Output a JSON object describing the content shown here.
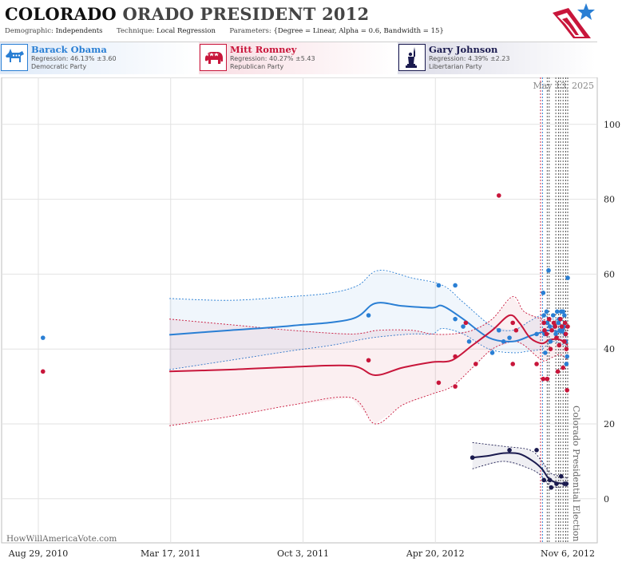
{
  "header": {
    "title_part1": "COLORADO",
    "title_part2": "ORADO PRESIDENT 2012",
    "demographic_label": "Demographic:",
    "demographic_value": "Independents",
    "technique_label": "Technique:",
    "technique_value": "Local Regression",
    "parameters_label": "Parameters:",
    "parameters_value": "{Degree = Linear, Alpha = 0.6, Bandwidth = 15}"
  },
  "candidates": [
    {
      "name": "Barack Obama",
      "regression": "Regression: 46.13% ±3.60",
      "party": "Democratic Party",
      "color": "#2a7fd4",
      "icon": "donkey-icon"
    },
    {
      "name": "Mitt Romney",
      "regression": "Regression: 40.27% ±5.43",
      "party": "Republican Party",
      "color": "#c8163b",
      "icon": "elephant-icon"
    },
    {
      "name": "Gary Johnson",
      "regression": "Regression: 4.39% ±2.23",
      "party": "Libertarian Party",
      "color": "#1b1b4f",
      "icon": "liberty-statue-icon"
    }
  ],
  "watermark": "HowWillAmericaVote.com",
  "chart_data": {
    "type": "scatter",
    "date_label": "May 13, 2025",
    "election_label": "Colorado Presidential Election",
    "x_ticks": [
      "Aug 29, 2010",
      "Mar 17, 2011",
      "Oct 3, 2011",
      "Apr 20, 2012",
      "Nov 6, 2012"
    ],
    "x_domain": [
      "2010-08-29",
      "2012-11-06"
    ],
    "ylim": [
      -6,
      112
    ],
    "y_ticks": [
      0,
      20,
      40,
      60,
      80,
      100
    ],
    "grid": true,
    "vlines": [
      {
        "date": "2012-09-26",
        "color": "#c8163b"
      },
      {
        "date": "2012-09-29",
        "color": "#2a7fd4"
      },
      {
        "date": "2012-10-06",
        "color": "#444"
      },
      {
        "date": "2012-10-09",
        "color": "#444"
      },
      {
        "date": "2012-10-19",
        "color": "#444"
      },
      {
        "date": "2012-10-23",
        "color": "#444"
      },
      {
        "date": "2012-10-26",
        "color": "#444"
      },
      {
        "date": "2012-10-30",
        "color": "#444"
      },
      {
        "date": "2012-11-03",
        "color": "#444"
      },
      {
        "date": "2012-11-06",
        "color": "#444"
      }
    ],
    "series": [
      {
        "name": "Barack Obama",
        "color": "#2a7fd4",
        "line": [
          [
            "2011-03-15",
            43.8
          ],
          [
            "2011-06-15",
            45
          ],
          [
            "2011-09-15",
            46.2
          ],
          [
            "2011-12-15",
            48
          ],
          [
            "2012-01-20",
            52.2
          ],
          [
            "2012-03-01",
            51.5
          ],
          [
            "2012-04-15",
            51
          ],
          [
            "2012-05-01",
            51.5
          ],
          [
            "2012-06-01",
            48
          ],
          [
            "2012-07-10",
            43
          ],
          [
            "2012-08-15",
            42
          ],
          [
            "2012-09-10",
            43.5
          ],
          [
            "2012-09-28",
            44.5
          ],
          [
            "2012-10-10",
            45
          ],
          [
            "2012-10-25",
            44.5
          ],
          [
            "2012-11-06",
            44
          ]
        ],
        "upper": [
          [
            "2011-03-15",
            53.5
          ],
          [
            "2011-06-15",
            53
          ],
          [
            "2011-09-15",
            54
          ],
          [
            "2011-11-15",
            55
          ],
          [
            "2011-12-25",
            57
          ],
          [
            "2012-01-25",
            61
          ],
          [
            "2012-03-15",
            59
          ],
          [
            "2012-05-01",
            57
          ],
          [
            "2012-06-01",
            52.5
          ],
          [
            "2012-07-15",
            46
          ],
          [
            "2012-08-15",
            45
          ],
          [
            "2012-09-10",
            47.5
          ],
          [
            "2012-09-28",
            49
          ],
          [
            "2012-10-15",
            48
          ],
          [
            "2012-11-06",
            47.5
          ]
        ],
        "lower": [
          [
            "2011-03-15",
            34.5
          ],
          [
            "2011-06-15",
            37
          ],
          [
            "2011-09-15",
            39.5
          ],
          [
            "2011-11-15",
            41
          ],
          [
            "2012-01-15",
            43
          ],
          [
            "2012-03-15",
            44
          ],
          [
            "2012-04-15",
            44
          ],
          [
            "2012-05-01",
            45.5
          ],
          [
            "2012-06-01",
            44
          ],
          [
            "2012-07-10",
            40
          ],
          [
            "2012-08-15",
            39
          ],
          [
            "2012-09-10",
            39.5
          ],
          [
            "2012-09-28",
            40
          ],
          [
            "2012-10-15",
            42
          ],
          [
            "2012-11-06",
            40.5
          ]
        ],
        "points": [
          [
            "2010-09-05",
            43
          ],
          [
            "2012-01-10",
            49
          ],
          [
            "2012-04-25",
            57
          ],
          [
            "2012-05-20",
            57
          ],
          [
            "2012-05-20",
            48
          ],
          [
            "2012-06-01",
            46
          ],
          [
            "2012-06-10",
            42
          ],
          [
            "2012-07-15",
            39
          ],
          [
            "2012-07-25",
            45
          ],
          [
            "2012-08-01",
            42
          ],
          [
            "2012-08-10",
            43
          ],
          [
            "2012-09-20",
            44
          ],
          [
            "2012-09-30",
            55
          ],
          [
            "2012-10-01",
            49
          ],
          [
            "2012-10-02",
            44
          ],
          [
            "2012-10-03",
            39
          ],
          [
            "2012-10-05",
            50
          ],
          [
            "2012-10-06",
            47
          ],
          [
            "2012-10-08",
            61
          ],
          [
            "2012-10-10",
            46
          ],
          [
            "2012-10-11",
            42
          ],
          [
            "2012-10-15",
            49
          ],
          [
            "2012-10-17",
            46
          ],
          [
            "2012-10-19",
            44
          ],
          [
            "2012-10-21",
            50
          ],
          [
            "2012-10-23",
            47
          ],
          [
            "2012-10-24",
            48
          ],
          [
            "2012-10-25",
            45
          ],
          [
            "2012-10-27",
            50
          ],
          [
            "2012-10-29",
            45
          ],
          [
            "2012-10-30",
            50
          ],
          [
            "2012-10-31",
            46
          ],
          [
            "2012-11-01",
            49
          ],
          [
            "2012-11-02",
            44
          ],
          [
            "2012-11-03",
            42
          ],
          [
            "2012-11-04",
            36
          ],
          [
            "2012-11-05",
            38
          ],
          [
            "2012-11-06",
            59
          ]
        ]
      },
      {
        "name": "Mitt Romney",
        "color": "#c8163b",
        "line": [
          [
            "2011-03-15",
            34
          ],
          [
            "2011-06-15",
            34.5
          ],
          [
            "2011-09-15",
            35.2
          ],
          [
            "2011-12-15",
            35.5
          ],
          [
            "2012-01-20",
            33
          ],
          [
            "2012-03-01",
            35
          ],
          [
            "2012-04-15",
            36.5
          ],
          [
            "2012-05-15",
            37
          ],
          [
            "2012-06-15",
            41
          ],
          [
            "2012-07-15",
            45
          ],
          [
            "2012-08-10",
            49
          ],
          [
            "2012-08-25",
            47
          ],
          [
            "2012-09-10",
            43
          ],
          [
            "2012-09-28",
            41.5
          ],
          [
            "2012-10-10",
            42.5
          ],
          [
            "2012-10-25",
            42.5
          ],
          [
            "2012-11-06",
            41
          ]
        ],
        "upper": [
          [
            "2011-03-15",
            48
          ],
          [
            "2011-06-15",
            46.5
          ],
          [
            "2011-09-15",
            45
          ],
          [
            "2011-12-15",
            44
          ],
          [
            "2012-01-25",
            45
          ],
          [
            "2012-03-15",
            45
          ],
          [
            "2012-04-15",
            44
          ],
          [
            "2012-05-15",
            44
          ],
          [
            "2012-06-15",
            45
          ],
          [
            "2012-07-15",
            48
          ],
          [
            "2012-08-15",
            54
          ],
          [
            "2012-09-01",
            50
          ],
          [
            "2012-09-28",
            48
          ],
          [
            "2012-10-10",
            47.5
          ],
          [
            "2012-10-25",
            46
          ],
          [
            "2012-11-06",
            45
          ]
        ],
        "lower": [
          [
            "2011-03-15",
            19.5
          ],
          [
            "2011-06-15",
            22
          ],
          [
            "2011-09-15",
            25
          ],
          [
            "2011-12-15",
            27
          ],
          [
            "2012-01-20",
            20
          ],
          [
            "2012-03-01",
            25
          ],
          [
            "2012-04-15",
            28
          ],
          [
            "2012-05-15",
            30
          ],
          [
            "2012-06-15",
            35
          ],
          [
            "2012-07-15",
            40
          ],
          [
            "2012-08-15",
            42
          ],
          [
            "2012-09-01",
            41
          ],
          [
            "2012-09-28",
            37
          ],
          [
            "2012-10-10",
            37.5
          ],
          [
            "2012-10-25",
            38.5
          ],
          [
            "2012-11-06",
            37
          ]
        ],
        "points": [
          [
            "2010-09-05",
            34
          ],
          [
            "2012-01-10",
            37
          ],
          [
            "2012-04-25",
            31
          ],
          [
            "2012-05-20",
            38
          ],
          [
            "2012-05-20",
            30
          ],
          [
            "2012-06-05",
            47
          ],
          [
            "2012-06-20",
            36
          ],
          [
            "2012-07-25",
            81
          ],
          [
            "2012-08-15",
            47
          ],
          [
            "2012-08-15",
            36
          ],
          [
            "2012-08-20",
            45
          ],
          [
            "2012-09-20",
            36
          ],
          [
            "2012-09-30",
            32
          ],
          [
            "2012-10-01",
            47
          ],
          [
            "2012-10-02",
            45
          ],
          [
            "2012-10-05",
            44
          ],
          [
            "2012-10-06",
            32
          ],
          [
            "2012-10-09",
            48
          ],
          [
            "2012-10-11",
            40
          ],
          [
            "2012-10-13",
            45
          ],
          [
            "2012-10-16",
            47
          ],
          [
            "2012-10-18",
            46
          ],
          [
            "2012-10-20",
            43
          ],
          [
            "2012-10-22",
            34
          ],
          [
            "2012-10-24",
            41
          ],
          [
            "2012-10-26",
            48
          ],
          [
            "2012-10-28",
            46
          ],
          [
            "2012-10-30",
            35
          ],
          [
            "2012-11-01",
            42
          ],
          [
            "2012-11-02",
            47
          ],
          [
            "2012-11-03",
            44
          ],
          [
            "2012-11-04",
            40
          ],
          [
            "2012-11-05",
            29
          ],
          [
            "2012-11-06",
            46
          ]
        ]
      },
      {
        "name": "Gary Johnson",
        "color": "#1b1b4f",
        "line": [
          [
            "2012-06-15",
            11
          ],
          [
            "2012-07-10",
            11.5
          ],
          [
            "2012-08-01",
            12.2
          ],
          [
            "2012-08-25",
            12
          ],
          [
            "2012-09-15",
            10
          ],
          [
            "2012-09-28",
            8
          ],
          [
            "2012-10-08",
            5.5
          ],
          [
            "2012-10-20",
            4.3
          ],
          [
            "2012-11-06",
            4
          ]
        ],
        "upper": [
          [
            "2012-06-15",
            15
          ],
          [
            "2012-08-01",
            14
          ],
          [
            "2012-09-10",
            13
          ],
          [
            "2012-09-28",
            10
          ],
          [
            "2012-10-10",
            7
          ],
          [
            "2012-10-25",
            6
          ],
          [
            "2012-11-06",
            5.5
          ]
        ],
        "lower": [
          [
            "2012-06-15",
            8
          ],
          [
            "2012-08-01",
            10
          ],
          [
            "2012-09-10",
            8
          ],
          [
            "2012-09-28",
            6
          ],
          [
            "2012-10-10",
            3.5
          ],
          [
            "2012-10-25",
            3
          ],
          [
            "2012-11-06",
            3.5
          ]
        ],
        "points": [
          [
            "2012-06-15",
            11
          ],
          [
            "2012-08-10",
            13
          ],
          [
            "2012-09-20",
            13
          ],
          [
            "2012-10-01",
            5
          ],
          [
            "2012-10-10",
            5
          ],
          [
            "2012-10-12",
            3
          ],
          [
            "2012-10-20",
            4
          ],
          [
            "2012-10-27",
            6
          ],
          [
            "2012-11-01",
            4
          ],
          [
            "2012-11-04",
            4
          ]
        ]
      }
    ]
  }
}
